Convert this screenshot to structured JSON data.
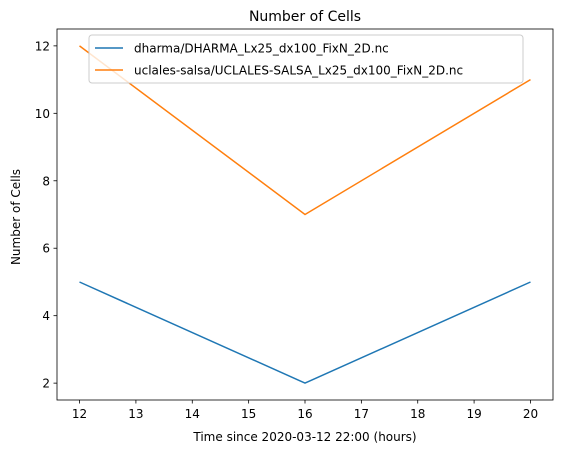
{
  "chart_data": {
    "type": "line",
    "title": "Number of Cells",
    "xlabel": "Time since 2020-03-12 22:00 (hours)",
    "ylabel": "Number of Cells",
    "xlim": [
      11.6,
      20.4
    ],
    "ylim": [
      1.5,
      12.5
    ],
    "xticks": [
      12,
      13,
      14,
      15,
      16,
      17,
      18,
      19,
      20
    ],
    "yticks": [
      2,
      4,
      6,
      8,
      10,
      12
    ],
    "grid": false,
    "legend": "top-right",
    "series": [
      {
        "name": "dharma/DHARMA_Lx25_dx100_FixN_2D.nc",
        "color": "#1f77b4",
        "x": [
          12,
          16,
          20
        ],
        "y": [
          5,
          2,
          5
        ]
      },
      {
        "name": "uclales-salsa/UCLALES-SALSA_Lx25_dx100_FixN_2D.nc",
        "color": "#ff7f0e",
        "x": [
          12,
          16,
          20
        ],
        "y": [
          12,
          7,
          11
        ]
      }
    ]
  }
}
